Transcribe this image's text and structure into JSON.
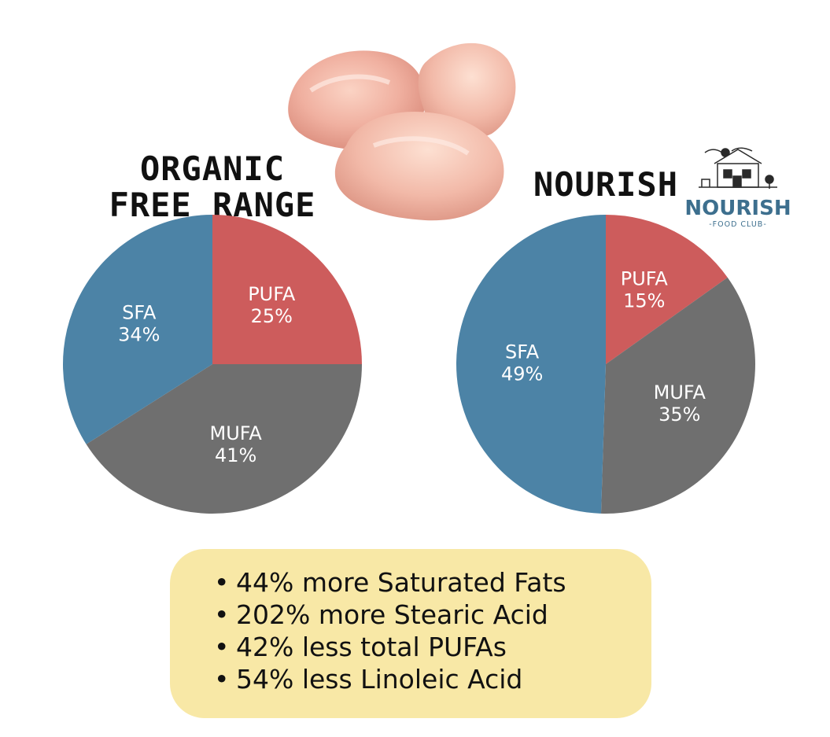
{
  "colors": {
    "PUFA": "#cd5c5c",
    "MUFA": "#6f6f6f",
    "SFA": "#4c83a6",
    "facts_bg": "#f8e8a6",
    "logo": "#3d6f8e"
  },
  "chart_data": [
    {
      "type": "pie",
      "title": "ORGANIC FREE RANGE",
      "title_lines": [
        "ORGANIC",
        "FREE RANGE"
      ],
      "slices": [
        {
          "label": "PUFA",
          "value": 25,
          "value_label": "25%"
        },
        {
          "label": "MUFA",
          "value": 41,
          "value_label": "41%"
        },
        {
          "label": "SFA",
          "value": 34,
          "value_label": "34%"
        }
      ]
    },
    {
      "type": "pie",
      "title": "NOURISH",
      "title_lines": [
        "NOURISH"
      ],
      "slices": [
        {
          "label": "PUFA",
          "value": 15,
          "value_label": "15%"
        },
        {
          "label": "MUFA",
          "value": 35,
          "value_label": "35%"
        },
        {
          "label": "SFA",
          "value": 49,
          "value_label": "49%"
        }
      ]
    }
  ],
  "logo": {
    "name": "NOURISH",
    "subtitle": "-FOOD CLUB-",
    "icon": "farmhouse-icon"
  },
  "image": {
    "icon": "chicken-thighs-image"
  },
  "facts": [
    "44% more Saturated Fats",
    "202% more Stearic Acid",
    "42% less total PUFAs",
    "54% less Linoleic Acid"
  ]
}
